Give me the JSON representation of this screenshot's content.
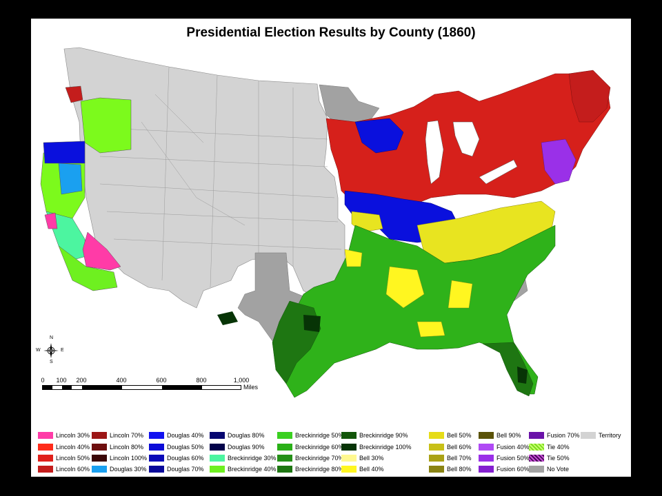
{
  "title": "Presidential Election Results by County (1860)",
  "compass": {
    "n": "N",
    "s": "S",
    "e": "E",
    "w": "W"
  },
  "scale": {
    "ticks": [
      "0",
      "100",
      "200",
      "400",
      "600",
      "800",
      "1,000"
    ],
    "unit": "Miles"
  },
  "colors": {
    "lincoln": "#d6201b",
    "douglas": "#0a10dd",
    "breckinridge": "#2fb21a",
    "bell": "#e8e420",
    "fusion": "#8e2ad6",
    "territory": "#d3d3d3",
    "novote": "#a2a2a2",
    "lincoln_pink": "#ff3ba7",
    "douglas_light": "#1aa0f0",
    "oregon_green": "#7cfa1c"
  },
  "legend": [
    {
      "label": "Lincoln 30%",
      "color": "#ff3ba7"
    },
    {
      "label": "Lincoln 40%",
      "color": "#ff2b1a"
    },
    {
      "label": "Lincoln 50%",
      "color": "#e0201b"
    },
    {
      "label": "Lincoln 60%",
      "color": "#c41d1c"
    },
    {
      "label": "Lincoln 70%",
      "color": "#9c1616"
    },
    {
      "label": "Lincoln 80%",
      "color": "#6e0f0f"
    },
    {
      "label": "Lincoln 100%",
      "color": "#3a0606"
    },
    {
      "label": "Douglas 30%",
      "color": "#1aa0f0"
    },
    {
      "label": "Douglas 40%",
      "color": "#1212f0"
    },
    {
      "label": "Douglas 50%",
      "color": "#0c0cd8"
    },
    {
      "label": "Douglas 60%",
      "color": "#0a0ab8"
    },
    {
      "label": "Douglas 70%",
      "color": "#08089a"
    },
    {
      "label": "Douglas 80%",
      "color": "#060670"
    },
    {
      "label": "Douglas 90%",
      "color": "#03034a"
    },
    {
      "label": "Breckinridge 30%",
      "color": "#4cf5a0"
    },
    {
      "label": "Breckinridge 40%",
      "color": "#6ef020"
    },
    {
      "label": "Breckinridge 50%",
      "color": "#3ad020"
    },
    {
      "label": "Breckinridge 60%",
      "color": "#2ab018"
    },
    {
      "label": "Breckinridge 70%",
      "color": "#259018"
    },
    {
      "label": "Breckinridge 80%",
      "color": "#1e7612"
    },
    {
      "label": "Breckinridge 90%",
      "color": "#12560a"
    },
    {
      "label": "Breckinridge 100%",
      "color": "#073406"
    },
    {
      "label": "Bell 30%",
      "color": "#fff890"
    },
    {
      "label": "Bell 40%",
      "color": "#fff620"
    },
    {
      "label": "Bell 50%",
      "color": "#e6dc18"
    },
    {
      "label": "Bell 60%",
      "color": "#c8c018"
    },
    {
      "label": "Bell 70%",
      "color": "#aaa216"
    },
    {
      "label": "Bell 80%",
      "color": "#8a8414"
    },
    {
      "label": "Bell 90%",
      "color": "#5a5208"
    },
    {
      "label": "Fusion 40%",
      "color": "#b04af5"
    },
    {
      "label": "Fusion 50%",
      "color": "#9a30e8"
    },
    {
      "label": "Fusion 60%",
      "color": "#8420d0"
    },
    {
      "label": "Fusion 70%",
      "color": "#6a12a8"
    },
    {
      "label": "Tie 40%",
      "color": "#7bdc1e",
      "pattern": "hatch-tie40"
    },
    {
      "label": "Tie 50%",
      "color": "#4a0a5a",
      "pattern": "hatch-tie50"
    },
    {
      "label": "No Vote",
      "color": "#a2a2a2"
    },
    {
      "label": "Territory",
      "color": "#d3d3d3"
    }
  ]
}
